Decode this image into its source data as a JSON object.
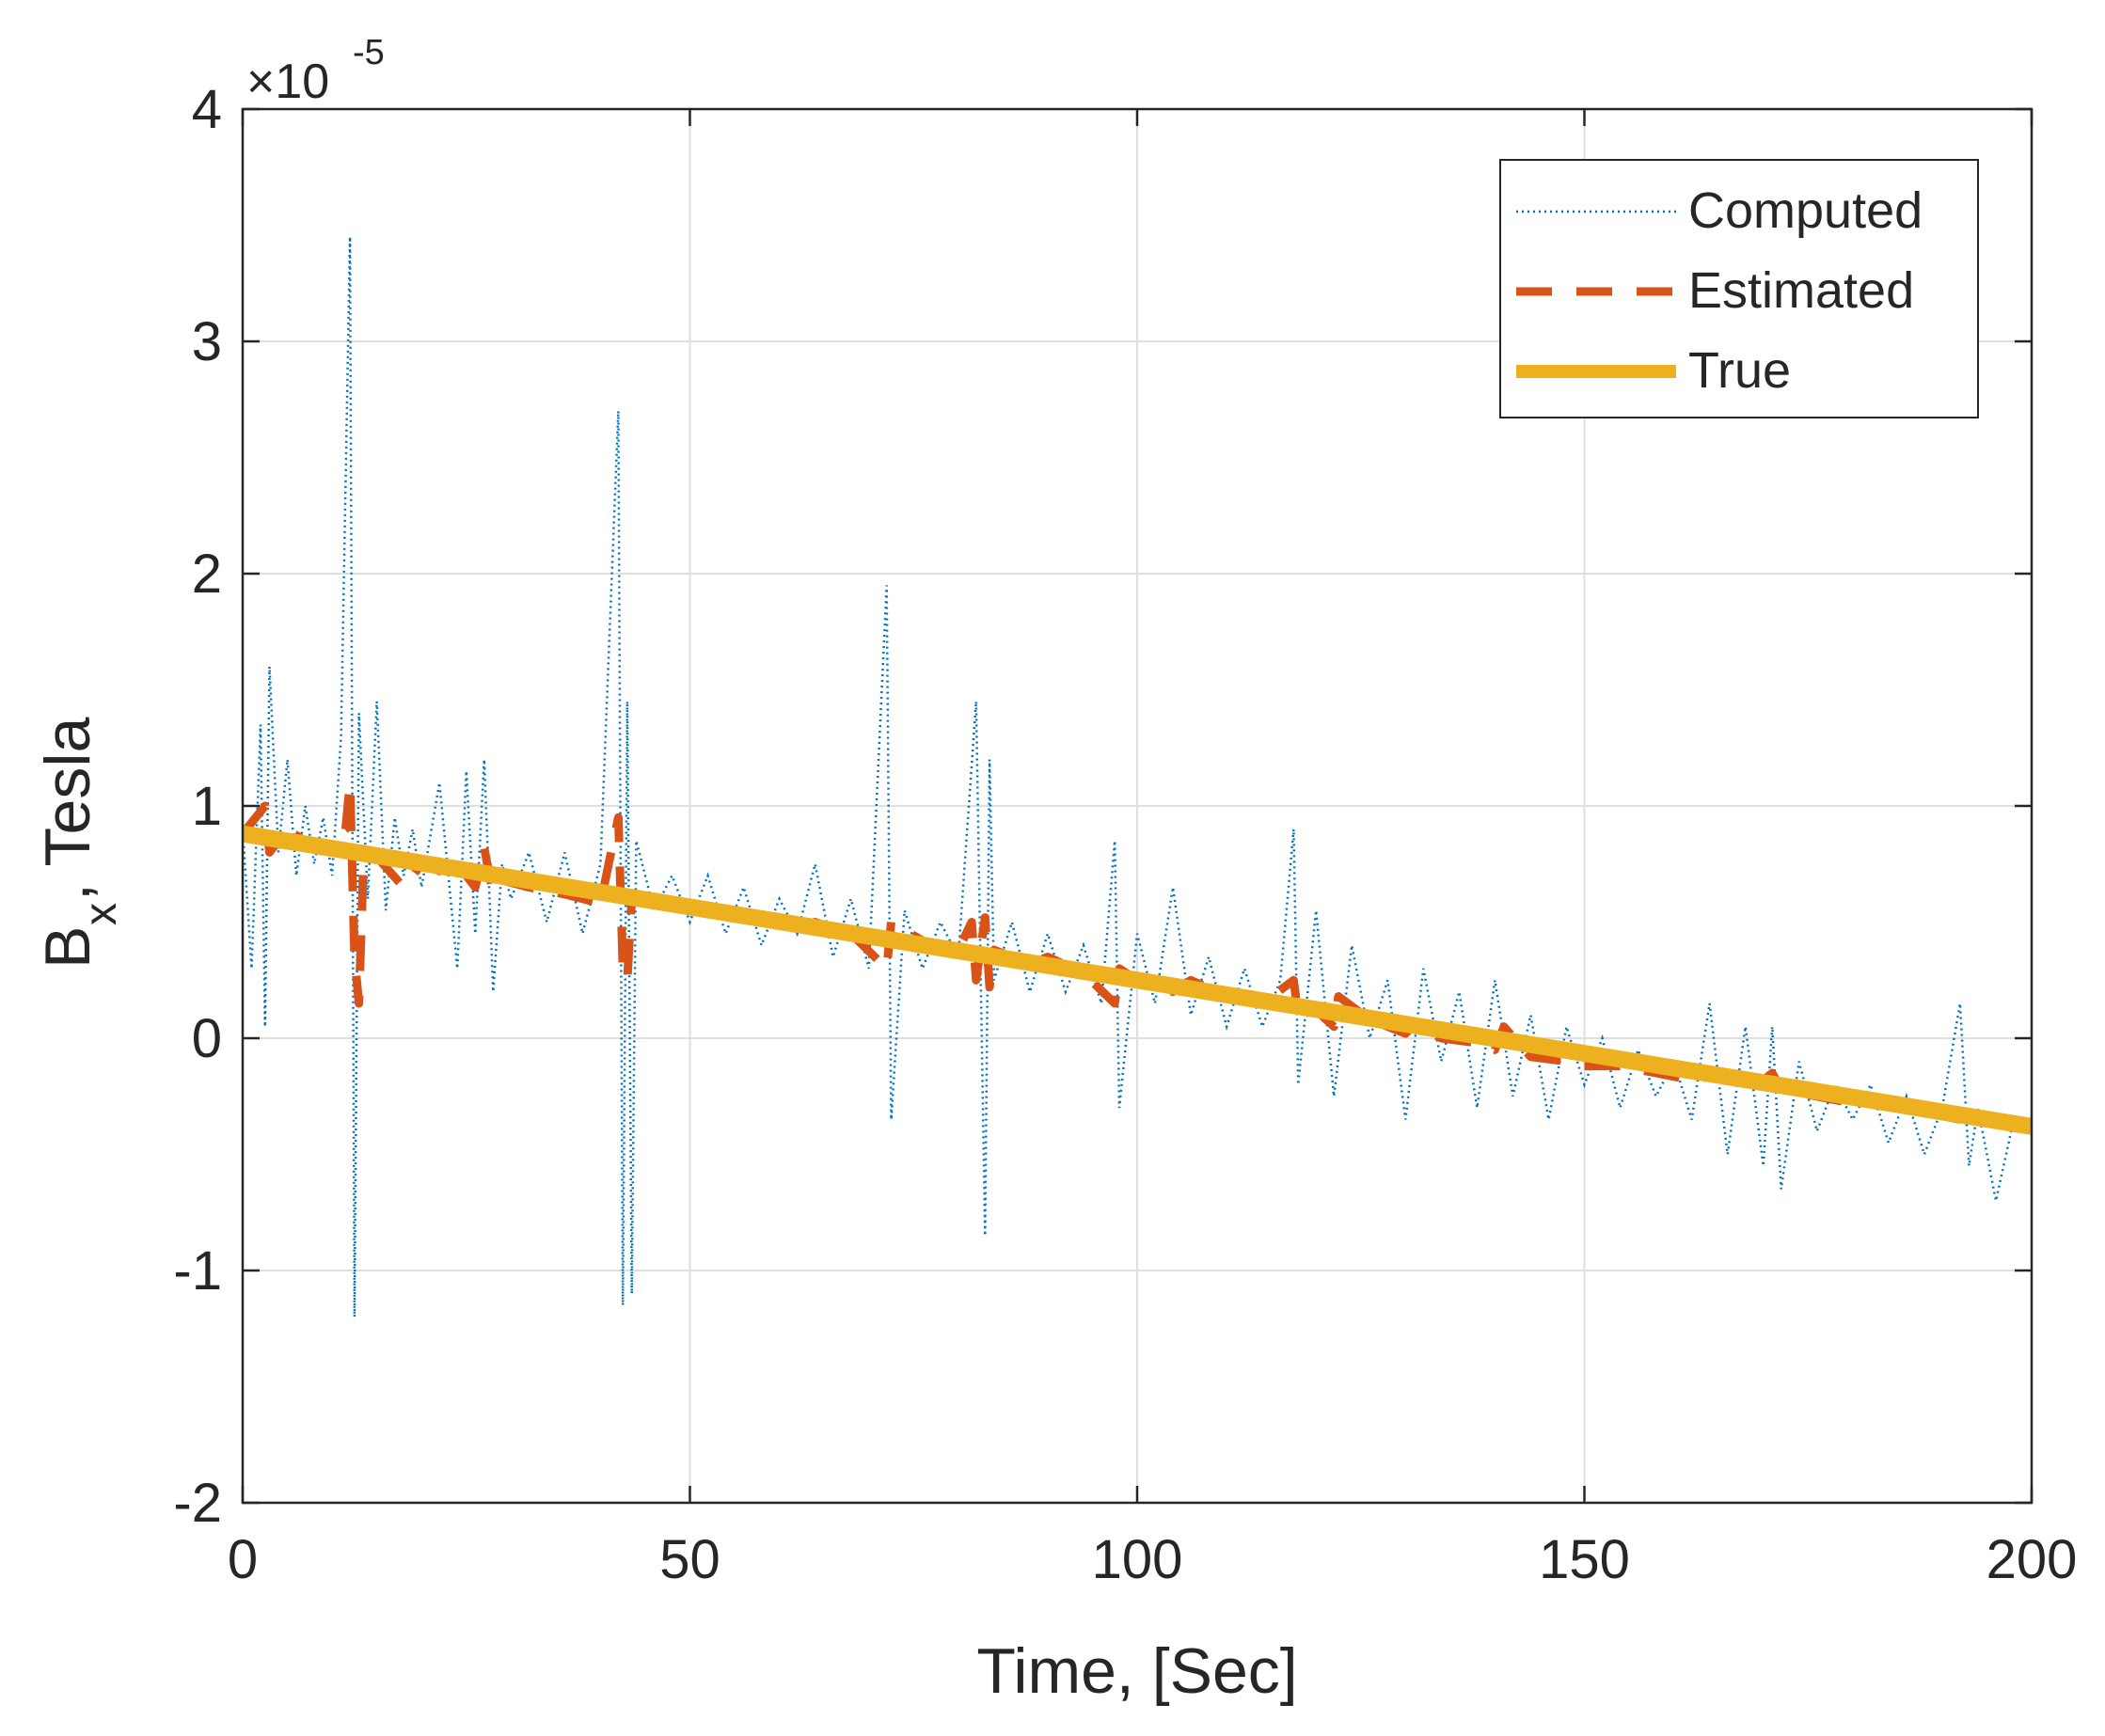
{
  "chart_data": {
    "type": "line",
    "title": "",
    "xlabel": "Time, [Sec]",
    "ylabel_main": "B",
    "ylabel_sub": "x",
    "ylabel_rest": ", Tesla",
    "xlim": [
      0,
      200
    ],
    "ylim": [
      -2,
      4
    ],
    "y_multiplier": "×10",
    "y_exponent": "-5",
    "xticks": [
      0,
      50,
      100,
      150,
      200
    ],
    "xtick_labels": [
      "0",
      "50",
      "100",
      "150",
      "200"
    ],
    "yticks": [
      -2,
      -1,
      0,
      1,
      2,
      3,
      4
    ],
    "ytick_labels": [
      "-2",
      "-1",
      "0",
      "1",
      "2",
      "3",
      "4"
    ],
    "grid": true,
    "legend_position": "top-right",
    "colors": {
      "computed": "#0072BD",
      "estimated": "#D95319",
      "true": "#EDB120",
      "axis": "#262626",
      "grid": "#DFDFDF"
    },
    "series": [
      {
        "name": "Computed",
        "style": "dotted",
        "x": [
          0,
          1,
          2,
          2.5,
          3,
          4,
          5,
          6,
          7,
          8,
          9,
          10,
          11,
          12,
          12.5,
          13,
          14,
          15,
          16,
          17,
          18,
          19,
          20,
          22,
          24,
          25,
          26,
          27,
          28,
          29,
          30,
          32,
          34,
          36,
          38,
          40,
          42,
          42.5,
          43,
          43.5,
          44,
          46,
          48,
          50,
          52,
          54,
          56,
          58,
          60,
          62,
          64,
          66,
          68,
          70,
          72,
          72.5,
          74,
          76,
          78,
          80,
          82,
          83,
          83.5,
          84,
          86,
          88,
          90,
          92,
          94,
          96,
          97.5,
          98,
          100,
          102,
          104,
          106,
          108,
          110,
          112,
          114,
          116,
          117.5,
          118,
          120,
          122,
          124,
          126,
          128,
          130,
          132,
          134,
          136,
          138,
          140,
          142,
          144,
          146,
          148,
          150,
          152,
          154,
          156,
          158,
          160,
          162,
          164,
          166,
          168,
          170,
          171,
          172,
          174,
          176,
          178,
          180,
          182,
          184,
          186,
          188,
          190,
          192,
          193,
          194,
          196,
          198,
          200
        ],
        "y": [
          0.9,
          0.3,
          1.35,
          0.05,
          1.6,
          0.8,
          1.2,
          0.7,
          1.0,
          0.75,
          0.95,
          0.7,
          1.3,
          3.45,
          -1.2,
          1.4,
          0.6,
          1.45,
          0.55,
          0.95,
          0.7,
          0.9,
          0.65,
          1.1,
          0.3,
          1.15,
          0.45,
          1.2,
          0.2,
          0.75,
          0.6,
          0.8,
          0.5,
          0.8,
          0.45,
          0.75,
          2.7,
          -1.15,
          1.45,
          -1.1,
          0.85,
          0.55,
          0.7,
          0.5,
          0.7,
          0.45,
          0.65,
          0.4,
          0.6,
          0.45,
          0.75,
          0.35,
          0.6,
          0.3,
          1.95,
          -0.35,
          0.55,
          0.3,
          0.5,
          0.35,
          1.45,
          -0.85,
          1.2,
          0.25,
          0.5,
          0.2,
          0.45,
          0.2,
          0.4,
          0.15,
          0.85,
          -0.3,
          0.45,
          0.15,
          0.65,
          0.1,
          0.35,
          0.05,
          0.3,
          0.05,
          0.25,
          0.9,
          -0.2,
          0.55,
          -0.25,
          0.4,
          0.0,
          0.25,
          -0.35,
          0.3,
          -0.1,
          0.2,
          -0.3,
          0.25,
          -0.25,
          0.1,
          -0.35,
          0.05,
          -0.2,
          0.0,
          -0.3,
          -0.05,
          -0.25,
          -0.1,
          -0.35,
          0.15,
          -0.5,
          0.05,
          -0.55,
          0.05,
          -0.65,
          -0.1,
          -0.4,
          -0.2,
          -0.35,
          -0.2,
          -0.45,
          -0.25,
          -0.5,
          -0.3,
          0.15,
          -0.55,
          -0.3,
          -0.7,
          -0.35,
          -0.4
        ]
      },
      {
        "name": "Estimated",
        "style": "dashed",
        "x": [
          0,
          2.5,
          3,
          5,
          8,
          10,
          11.5,
          12,
          12.5,
          13,
          13.5,
          15,
          18,
          20,
          22,
          24,
          26,
          27,
          28,
          29,
          32,
          36,
          40,
          42,
          42.5,
          43,
          43.5,
          44,
          46,
          50,
          54,
          58,
          62,
          64,
          68,
          72,
          72.5,
          76,
          80,
          81.5,
          82,
          83,
          83.5,
          84,
          88,
          90,
          94,
          97.5,
          98,
          100,
          104,
          106,
          110,
          114,
          117.5,
          118,
          120,
          122,
          122.5,
          126,
          130,
          131,
          134,
          138,
          140,
          141,
          144,
          148,
          150,
          154,
          158,
          162,
          166,
          168,
          170,
          171,
          172,
          176,
          180,
          184,
          188,
          192,
          196,
          200
        ],
        "y": [
          0.88,
          1.0,
          0.8,
          0.9,
          0.82,
          0.85,
          0.9,
          1.1,
          0.35,
          0.15,
          0.75,
          0.78,
          0.65,
          0.75,
          0.72,
          0.75,
          0.65,
          0.82,
          0.62,
          0.68,
          0.65,
          0.62,
          0.58,
          0.95,
          0.3,
          0.25,
          0.6,
          0.6,
          0.58,
          0.58,
          0.55,
          0.52,
          0.48,
          0.5,
          0.45,
          0.3,
          0.5,
          0.42,
          0.38,
          0.5,
          0.25,
          0.52,
          0.22,
          0.38,
          0.32,
          0.35,
          0.28,
          0.15,
          0.3,
          0.25,
          0.2,
          0.25,
          0.18,
          0.15,
          0.25,
          0.1,
          0.12,
          0.05,
          0.18,
          0.08,
          0.02,
          0.06,
          0.0,
          -0.02,
          -0.05,
          0.05,
          -0.08,
          -0.1,
          -0.12,
          -0.12,
          -0.15,
          -0.18,
          -0.15,
          -0.2,
          -0.18,
          -0.15,
          -0.22,
          -0.25,
          -0.28,
          -0.28,
          -0.32,
          -0.35,
          -0.35,
          -0.38
        ]
      },
      {
        "name": "True",
        "style": "solid",
        "x": [
          0,
          200
        ],
        "y": [
          0.88,
          -0.38
        ]
      }
    ]
  }
}
